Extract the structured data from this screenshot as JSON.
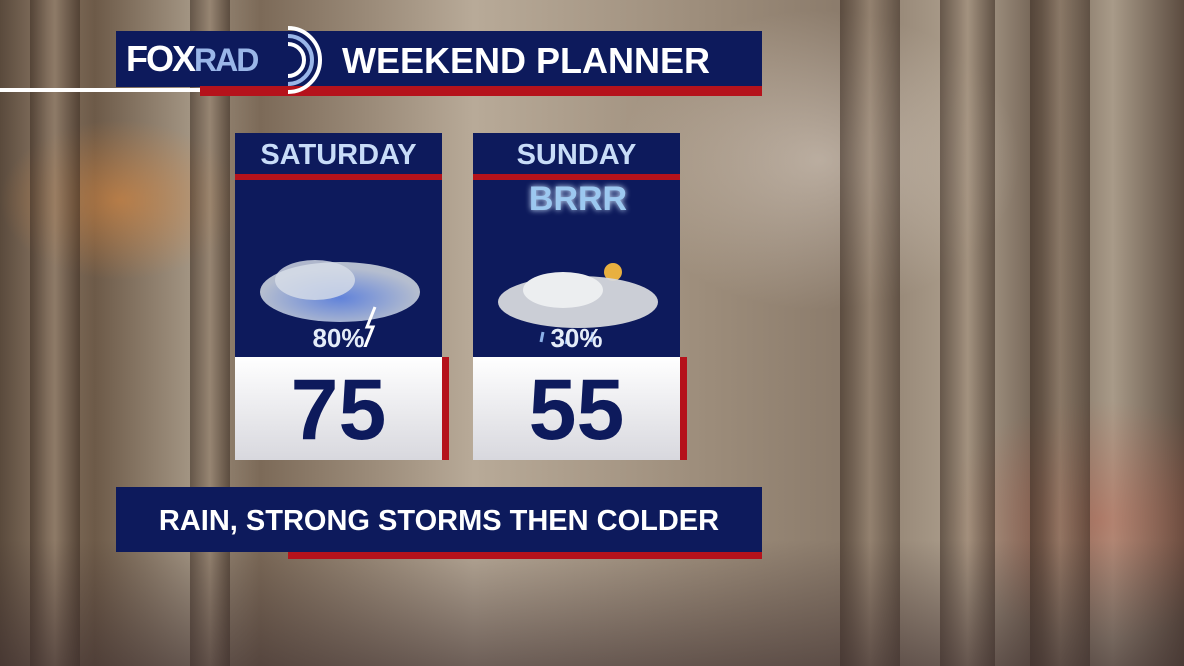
{
  "header": {
    "logo_text": "FOXRAD",
    "logo_parts": [
      "FOX",
      "RAD"
    ],
    "title": "WEEKEND PLANNER"
  },
  "days": [
    {
      "day": "SATURDAY",
      "icon": "thunderstorm-icon",
      "precip_chance": "80%",
      "temperature": "75"
    },
    {
      "day": "SUNDAY",
      "icon": "cloudy-rain-icon",
      "badge": "BRRR",
      "precip_chance": "30%",
      "temperature": "55"
    }
  ],
  "summary": "RAIN, STRONG STORMS THEN COLDER",
  "colors": {
    "navy": "#0d1a5c",
    "red": "#b5121b",
    "light_blue": "#c8dcf8"
  }
}
